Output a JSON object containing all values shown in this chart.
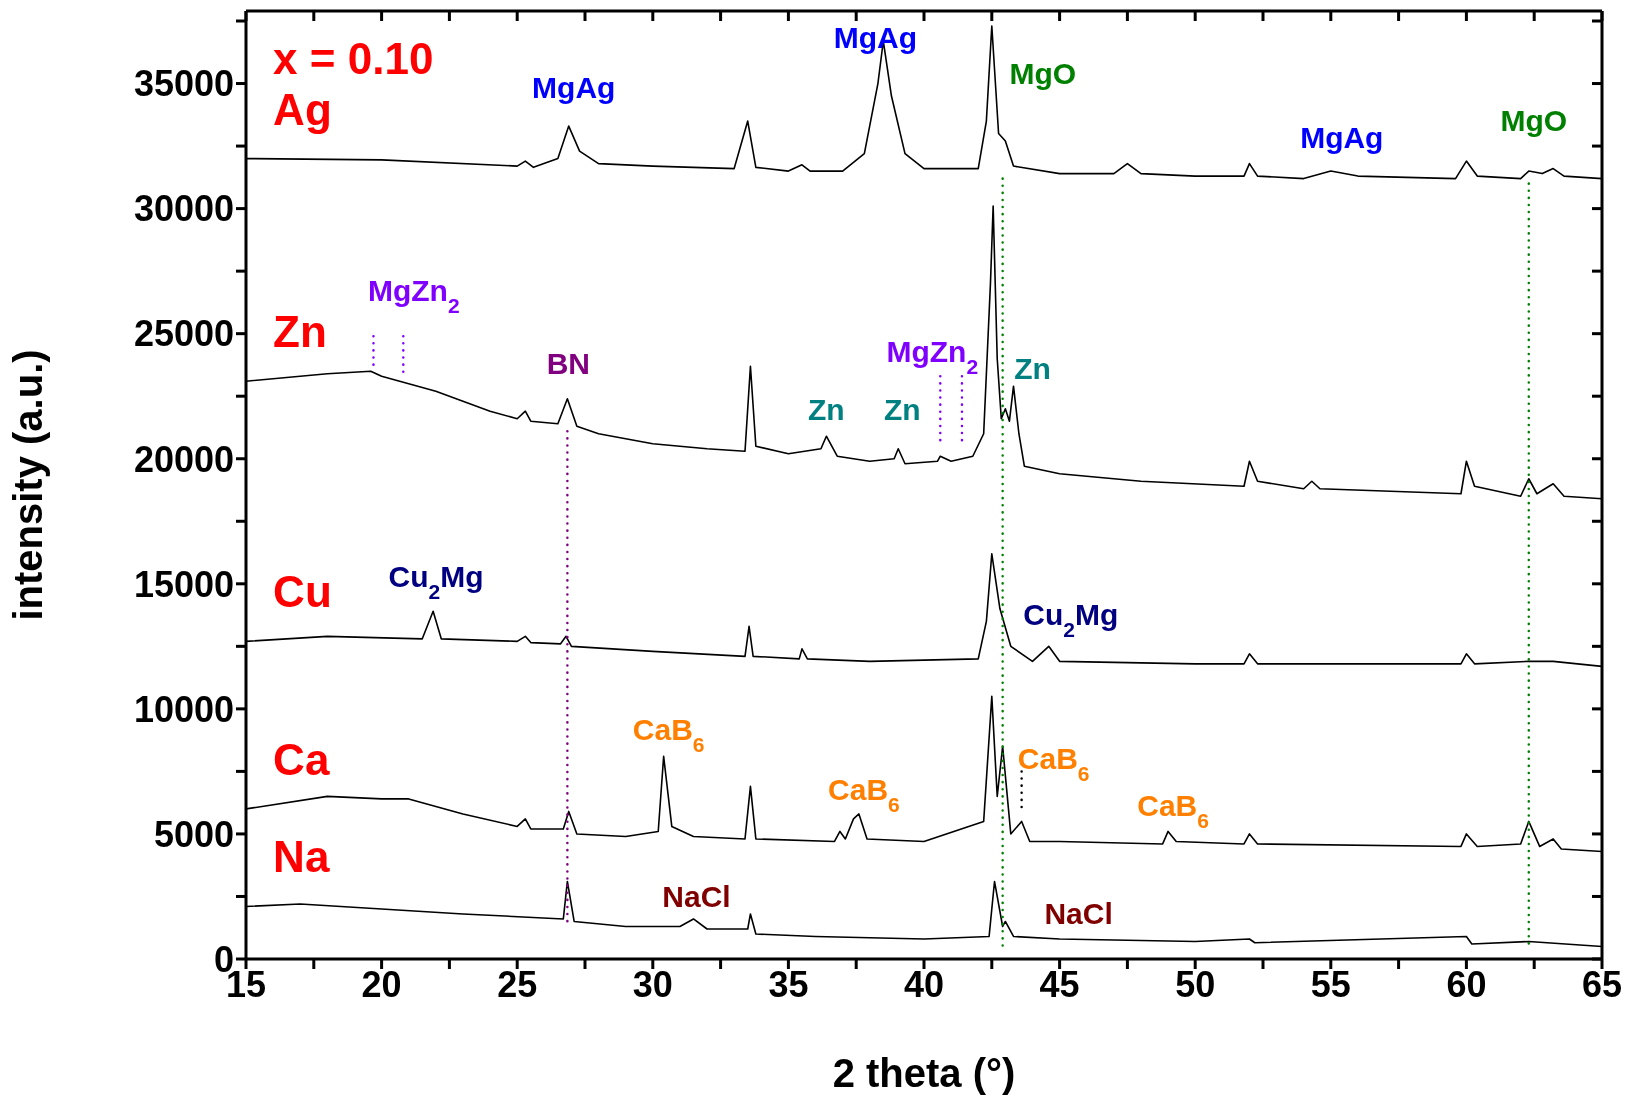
{
  "chart_data": {
    "type": "line",
    "xlabel": "2 theta (°)",
    "ylabel": "intensity (a.u.)",
    "xlim": [
      15,
      65
    ],
    "ylim": [
      0,
      37900
    ],
    "xticks": [
      15,
      {
        "value": 17.5,
        "label": null
      },
      20,
      {
        "value": 22.5,
        "label": null
      },
      25,
      {
        "value": 27.5,
        "label": null
      },
      30,
      {
        "value": 32.5,
        "label": null
      },
      35,
      {
        "value": 37.5,
        "label": null
      },
      40,
      {
        "value": 42.5,
        "label": null
      },
      45,
      {
        "value": 47.5,
        "label": null
      },
      50,
      {
        "value": 52.5,
        "label": null
      },
      55,
      {
        "value": 57.5,
        "label": null
      },
      60,
      {
        "value": 62.5,
        "label": null
      },
      65
    ],
    "yticks": [
      0,
      {
        "value": 2500,
        "label": null
      },
      5000,
      {
        "value": 7500,
        "label": null
      },
      10000,
      {
        "value": 12500,
        "label": null
      },
      15000,
      {
        "value": 17500,
        "label": null
      },
      20000,
      {
        "value": 22500,
        "label": null
      },
      25000,
      {
        "value": 27500,
        "label": null
      },
      30000,
      {
        "value": 32500,
        "label": null
      },
      35000,
      {
        "value": 37500,
        "label": null
      }
    ],
    "series": [
      {
        "name": "Ag",
        "color": "#000000",
        "x": [
          15,
          20,
          25,
          25.3,
          25.6,
          26.5,
          26.9,
          27.3,
          28,
          30,
          33,
          33.5,
          33.8,
          35,
          35.5,
          35.8,
          37,
          37.8,
          38.3,
          38.5,
          38.8,
          39.3,
          40,
          42,
          42.3,
          42.5,
          42.75,
          43,
          43.3,
          45,
          47,
          47.5,
          48,
          50,
          51.8,
          52,
          52.3,
          54,
          55,
          56,
          59.6,
          60,
          60.4,
          62,
          62.3,
          62.8,
          63.2,
          63.6,
          65
        ],
        "values": [
          32000,
          31950,
          31700,
          31900,
          31650,
          32000,
          33300,
          32300,
          31800,
          31700,
          31600,
          33500,
          31650,
          31500,
          31750,
          31500,
          31500,
          32200,
          35000,
          36700,
          34500,
          32200,
          31600,
          31600,
          33500,
          37300,
          33000,
          32700,
          31700,
          31400,
          31400,
          31800,
          31400,
          31300,
          31300,
          31800,
          31300,
          31200,
          31500,
          31300,
          31200,
          31900,
          31300,
          31200,
          31500,
          31400,
          31600,
          31300,
          31200
        ]
      },
      {
        "name": "Zn",
        "color": "#000000",
        "x": [
          15,
          18,
          19.6,
          20,
          21,
          22,
          23,
          24,
          25,
          25.3,
          25.5,
          26.5,
          26.85,
          27.2,
          28,
          30,
          32,
          33.4,
          33.6,
          33.8,
          35,
          36.2,
          36.4,
          36.8,
          38,
          38.9,
          39.05,
          39.3,
          40.5,
          40.6,
          41,
          41.4,
          41.8,
          42.2,
          42.45,
          42.55,
          42.7,
          42.85,
          43,
          43.15,
          43.3,
          43.5,
          43.7,
          45,
          48,
          51.8,
          52,
          52.3,
          54,
          54.3,
          54.6,
          59.8,
          60,
          60.3,
          62,
          62.3,
          62.6,
          63.2,
          63.6,
          65
        ],
        "values": [
          23100,
          23400,
          23500,
          23300,
          23000,
          22700,
          22300,
          21900,
          21600,
          21900,
          21500,
          21400,
          22400,
          21300,
          21000,
          20600,
          20400,
          20300,
          23700,
          20500,
          20200,
          20400,
          20900,
          20100,
          19900,
          20000,
          20400,
          19800,
          19900,
          20100,
          19900,
          20000,
          20100,
          21000,
          27000,
          30100,
          24000,
          21600,
          22000,
          21500,
          22900,
          21000,
          19700,
          19400,
          19100,
          18900,
          19900,
          19100,
          18800,
          19100,
          18800,
          18600,
          19900,
          18900,
          18500,
          19200,
          18600,
          19000,
          18500,
          18400
        ]
      },
      {
        "name": "Cu",
        "color": "#000000",
        "x": [
          15,
          18,
          21.5,
          21.9,
          22.2,
          25,
          25.3,
          25.5,
          26.6,
          26.8,
          27,
          30,
          33.4,
          33.55,
          33.7,
          35.4,
          35.5,
          35.7,
          38,
          42,
          42.3,
          42.5,
          42.8,
          43.2,
          44,
          44.6,
          45,
          50,
          51.8,
          52,
          52.3,
          59.8,
          60,
          60.3,
          62.3,
          63.2,
          65
        ],
        "values": [
          12700,
          12900,
          12800,
          13900,
          12800,
          12700,
          12900,
          12650,
          12600,
          12900,
          12500,
          12300,
          12100,
          13300,
          12100,
          12000,
          12400,
          12000,
          11900,
          12000,
          13500,
          16200,
          14000,
          12500,
          11900,
          12500,
          11900,
          11800,
          11800,
          12200,
          11800,
          11800,
          12200,
          11800,
          11900,
          11900,
          11700
        ]
      },
      {
        "name": "Ca",
        "color": "#000000",
        "x": [
          15,
          18,
          20,
          21,
          23,
          25,
          25.3,
          25.5,
          26.7,
          26.9,
          27.2,
          29,
          30.2,
          30.4,
          30.7,
          31.5,
          33.4,
          33.6,
          33.8,
          36.7,
          36.9,
          37.1,
          37.4,
          37.6,
          37.9,
          40,
          42.2,
          42.5,
          42.7,
          42.9,
          43.2,
          43.6,
          43.9,
          45,
          48.8,
          49,
          49.3,
          51.8,
          52,
          52.3,
          59.8,
          60,
          60.4,
          62,
          62.3,
          62.7,
          63.2,
          63.5,
          65
        ],
        "values": [
          6000,
          6500,
          6400,
          6400,
          5800,
          5300,
          5600,
          5200,
          5200,
          5900,
          5000,
          4900,
          5100,
          8100,
          5300,
          4900,
          4800,
          6900,
          4800,
          4700,
          5100,
          4800,
          5600,
          5800,
          4800,
          4700,
          5500,
          10500,
          6500,
          8500,
          5000,
          5500,
          4700,
          4700,
          4600,
          5100,
          4700,
          4600,
          5000,
          4600,
          4500,
          5000,
          4500,
          4600,
          5500,
          4500,
          4800,
          4400,
          4300
        ]
      },
      {
        "name": "Na",
        "color": "#000000",
        "x": [
          15,
          17,
          20,
          23,
          26.7,
          26.85,
          27.1,
          29,
          31,
          31.5,
          32,
          33.5,
          33.6,
          33.8,
          36,
          40,
          42.4,
          42.6,
          42.9,
          43,
          43.3,
          45,
          50,
          52,
          52.2,
          60,
          60.2,
          62.3,
          65
        ],
        "values": [
          2100,
          2200,
          2000,
          1800,
          1600,
          3100,
          1500,
          1300,
          1300,
          1600,
          1200,
          1200,
          1800,
          1000,
          900,
          800,
          900,
          3100,
          1300,
          1500,
          900,
          800,
          700,
          800,
          650,
          900,
          600,
          700,
          500
        ]
      },
      {
        "type": "line",
        "color": "#008000",
        "line_style": "dotted",
        "x": [
          42.9,
          42.9
        ],
        "values": [
          31200,
          500
        ]
      },
      {
        "type": "line",
        "color": "#008000",
        "line_style": "dotted",
        "x": [
          62.3,
          62.3
        ],
        "values": [
          31000,
          500
        ]
      },
      {
        "type": "line",
        "color": "#800080",
        "line_style": "dotted",
        "x": [
          26.85,
          26.85
        ],
        "values": [
          21100,
          1500
        ]
      },
      {
        "type": "line",
        "color": "#8000ff",
        "line_style": "dotted",
        "x": [
          19.7,
          19.7
        ],
        "values": [
          24900,
          23700
        ]
      },
      {
        "type": "line",
        "color": "#8000ff",
        "line_style": "dotted",
        "x": [
          20.8,
          20.8
        ],
        "values": [
          24900,
          23400
        ]
      },
      {
        "type": "line",
        "color": "#8000ff",
        "line_style": "dotted",
        "x": [
          40.6,
          40.6
        ],
        "values": [
          23300,
          20500
        ]
      },
      {
        "type": "line",
        "color": "#8000ff",
        "line_style": "dotted",
        "x": [
          41.4,
          41.4
        ],
        "values": [
          23300,
          20600
        ]
      },
      {
        "type": "line",
        "color": "#000000",
        "line_style": "dotted",
        "x": [
          43.6,
          43.6
        ],
        "values": [
          7500,
          6000
        ]
      }
    ],
    "annotations": [
      "x = 0.10",
      {
        "text": "MgAg",
        "x": 26.9,
        "y": 33300
      },
      {
        "text": "MgAg",
        "x": 38.5,
        "y": 36700
      },
      {
        "text": "MgO",
        "x": 42.5,
        "y": 37300
      },
      {
        "text": "MgAg",
        "x": 55,
        "y": 31500
      },
      {
        "text": "MgO",
        "x": 62.3,
        "y": 31500
      },
      {
        "text": "MgZn$_{2}$",
        "x": 19.6,
        "y": 23500
      },
      {
        "text": "BN",
        "x": 26.85,
        "y": 22400
      },
      {
        "text": "MgZn$_{2}$",
        "x": 40.6,
        "y": 20100
      },
      {
        "text": "Zn",
        "x": 36.4,
        "y": 20900
      },
      {
        "text": "Zn",
        "x": 39.05,
        "y": 20400
      },
      {
        "text": "Zn",
        "x": 43.3,
        "y": 22900
      },
      {
        "text": "Cu$_{2}$Mg",
        "x": 21.9,
        "y": 13900
      },
      {
        "text": "Cu$_{2}$Mg",
        "x": 44.6,
        "y": 12500
      },
      {
        "text": "CaB$_{6}$",
        "x": 30.4,
        "y": 8100
      },
      {
        "text": "CaB$_{6}$",
        "x": 37.6,
        "y": 5800
      },
      {
        "text": "CaB$_{6}$",
        "x": 42.9,
        "y": 8500
      },
      {
        "text": "CaB$_{6}$",
        "x": 49,
        "y": 5100
      },
      {
        "text": "NaCl",
        "x": 31.5,
        "y": 1600
      },
      {
        "text": "NaCl",
        "x": 45,
        "y": 800
      }
    ]
  }
}
